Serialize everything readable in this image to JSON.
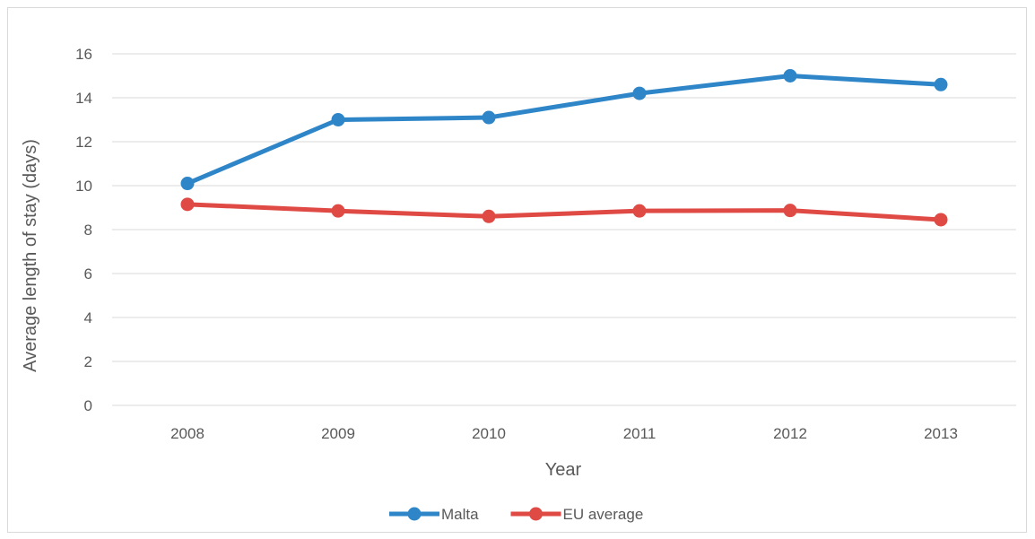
{
  "chart_data": {
    "type": "line",
    "title": "",
    "xlabel": "Year",
    "ylabel": "Average length of stay (days)",
    "categories": [
      "2008",
      "2009",
      "2010",
      "2011",
      "2012",
      "2013"
    ],
    "yticks": [
      "0",
      "2",
      "4",
      "6",
      "8",
      "10",
      "12",
      "14",
      "16"
    ],
    "ylim": [
      0,
      16
    ],
    "grid": true,
    "legend_position": "bottom",
    "series": [
      {
        "name": "Malta",
        "color": "#2e86c8",
        "values": [
          10.1,
          13.0,
          13.1,
          14.2,
          15.0,
          14.6
        ]
      },
      {
        "name": "EU average",
        "color": "#e04a45",
        "values": [
          9.15,
          8.85,
          8.6,
          8.85,
          8.87,
          8.45
        ]
      }
    ]
  }
}
